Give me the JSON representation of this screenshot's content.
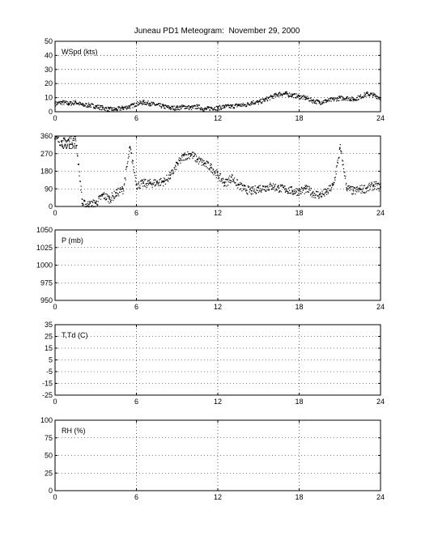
{
  "figure": {
    "title": "Juneau PD1 Meteogram:  November 29, 2000"
  },
  "chart_data": [
    {
      "type": "scatter",
      "ylabel": "WSpd (kts)",
      "xlim": [
        0,
        24
      ],
      "ylim": [
        0,
        50
      ],
      "xticks": [
        0,
        6,
        12,
        18,
        24
      ],
      "yticks": [
        0,
        10,
        20,
        30,
        40,
        50
      ],
      "grid": true,
      "series": [
        {
          "x": [
            0,
            0.5,
            1,
            1.5,
            2,
            2.5,
            3,
            3.5,
            4,
            4.5,
            5,
            5.5,
            6,
            6.5,
            7,
            7.5,
            8,
            8.5,
            9,
            9.5,
            10,
            10.5,
            11,
            11.5,
            12,
            12.5,
            13,
            13.5,
            14,
            14.5,
            15,
            15.5,
            16,
            16.5,
            17,
            17.5,
            18,
            18.5,
            19,
            19.5,
            20,
            20.5,
            21,
            21.5,
            22,
            22.5,
            23,
            23.5,
            24
          ],
          "y": [
            6,
            7,
            6,
            7,
            5,
            5,
            4,
            3,
            2,
            2,
            3,
            4,
            6,
            7,
            6,
            5,
            4,
            3,
            3,
            4,
            3,
            4,
            2,
            3,
            3,
            4,
            4,
            5,
            5,
            7,
            7,
            9,
            11,
            13,
            13,
            12,
            11,
            10,
            8,
            7,
            8,
            9,
            10,
            10,
            9,
            11,
            13,
            12,
            10
          ]
        }
      ]
    },
    {
      "type": "scatter",
      "ylabel": "WDir",
      "xlim": [
        0,
        24
      ],
      "ylim": [
        0,
        360
      ],
      "xticks": [
        0,
        6,
        12,
        18,
        24
      ],
      "yticks": [
        0,
        90,
        180,
        270,
        360
      ],
      "grid": true,
      "series": [
        {
          "x": [
            0,
            0.5,
            1,
            1.5,
            2,
            2.5,
            3,
            3.5,
            4,
            4.5,
            5,
            5.5,
            6,
            6.5,
            7,
            7.5,
            8,
            8.5,
            9,
            9.5,
            10,
            10.5,
            11,
            11.5,
            12,
            12.5,
            13,
            13.5,
            14,
            14.5,
            15,
            15.5,
            16,
            16.5,
            17,
            17.5,
            18,
            18.5,
            19,
            19.5,
            20,
            20.5,
            21,
            21.5,
            22,
            22.5,
            23,
            23.5,
            24
          ],
          "y": [
            345,
            330,
            340,
            345,
            15,
            10,
            20,
            60,
            40,
            70,
            90,
            300,
            110,
            120,
            120,
            125,
            130,
            160,
            220,
            260,
            270,
            240,
            220,
            200,
            160,
            120,
            150,
            110,
            90,
            80,
            95,
            100,
            105,
            95,
            90,
            80,
            80,
            90,
            70,
            60,
            75,
            110,
            300,
            95,
            80,
            90,
            95,
            110,
            100
          ]
        }
      ]
    },
    {
      "type": "scatter",
      "ylabel": "P (mb)",
      "xlim": [
        0,
        24
      ],
      "ylim": [
        950,
        1050
      ],
      "xticks": [
        0,
        6,
        12,
        18,
        24
      ],
      "yticks": [
        950,
        975,
        1000,
        1025,
        1050
      ],
      "grid": true,
      "series": []
    },
    {
      "type": "scatter",
      "ylabel": "T,Td (C)",
      "xlim": [
        0,
        24
      ],
      "ylim": [
        -25,
        35
      ],
      "xticks": [
        0,
        6,
        12,
        18,
        24
      ],
      "yticks": [
        -25,
        -15,
        -5,
        5,
        15,
        25,
        35
      ],
      "ytick_labels": [
        "-25",
        "-15",
        "-5",
        "5",
        "15",
        "25",
        "35"
      ],
      "grid": true,
      "series": []
    },
    {
      "type": "scatter",
      "ylabel": "RH (%)",
      "xlim": [
        0,
        24
      ],
      "ylim": [
        0,
        100
      ],
      "xticks": [
        0,
        6,
        12,
        18,
        24
      ],
      "yticks": [
        0,
        25,
        50,
        75,
        100
      ],
      "grid": true,
      "series": []
    }
  ]
}
